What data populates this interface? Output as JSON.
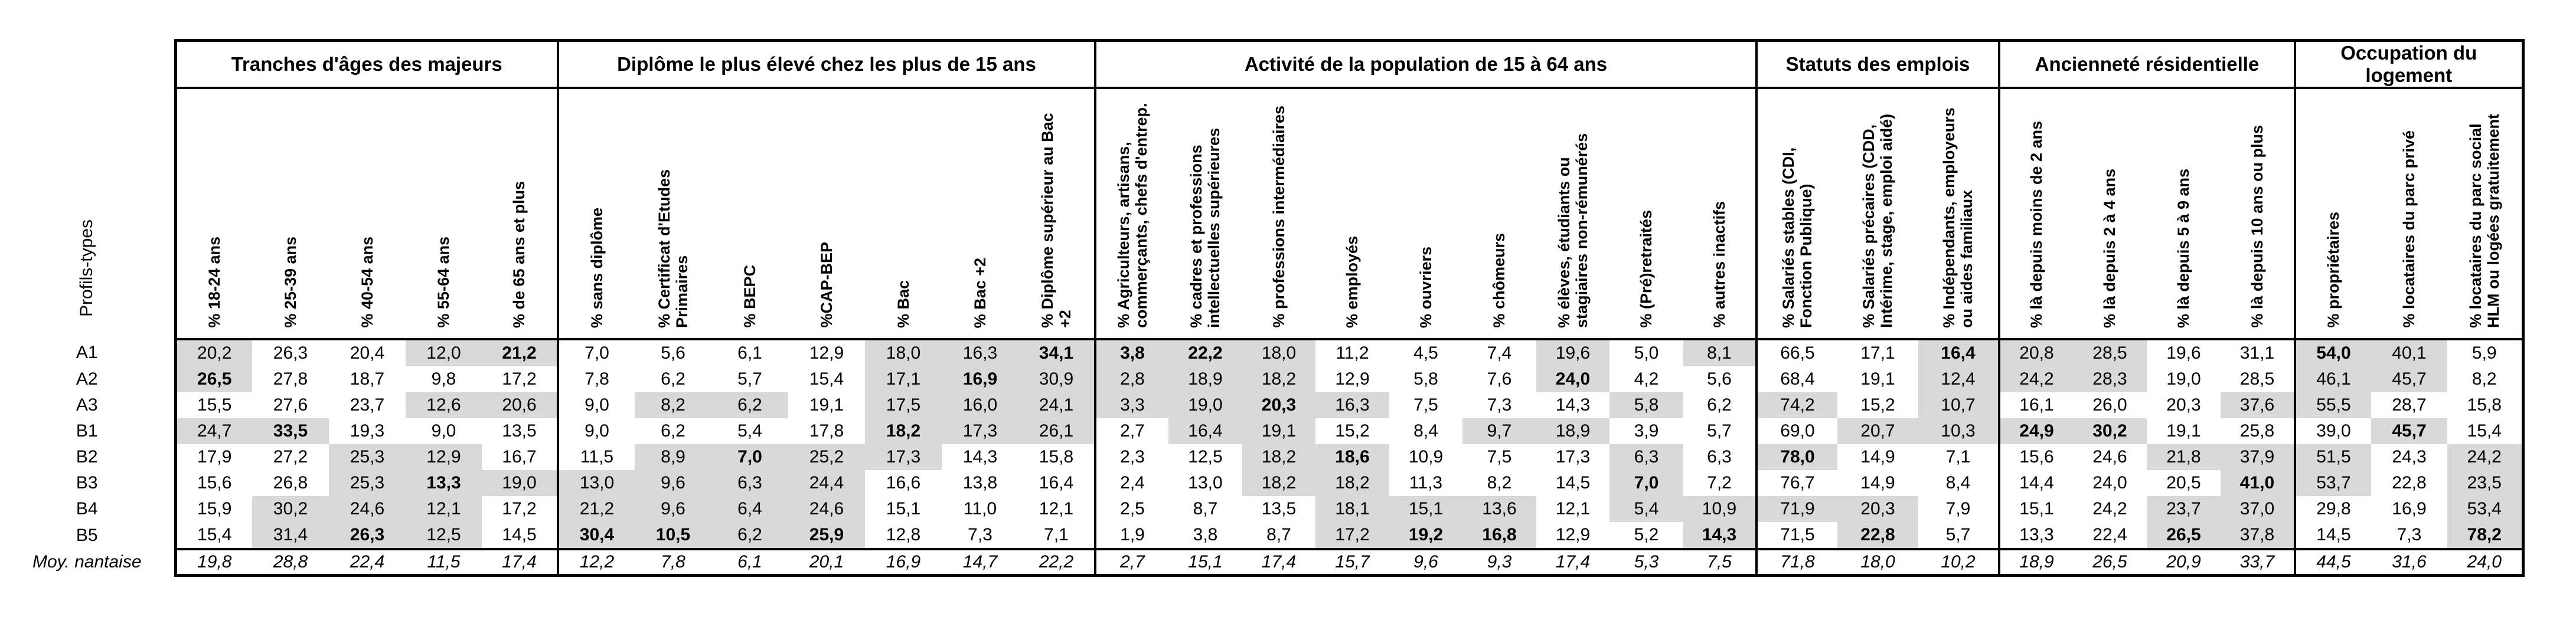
{
  "table": {
    "corner_label": "Profils-types",
    "average_row_label": "Moy. nantaise",
    "highlight_color": "#d9d9d9",
    "groups": [
      {
        "label": "Tranches d'âges des majeurs",
        "columns": [
          "% 18-24 ans",
          "% 25-39 ans",
          "% 40-54 ans",
          "% 55-64 ans",
          "% de 65 ans et plus"
        ]
      },
      {
        "label": "Diplôme le plus élevé chez les plus de 15 ans",
        "columns": [
          "% sans diplôme",
          "% Certificat d'Etudes Primaires",
          "% BEPC",
          "%CAP-BEP",
          "% Bac",
          "% Bac +2",
          "% Diplôme supérieur au Bac +2"
        ]
      },
      {
        "label": "Activité de la population de 15 à 64 ans",
        "columns": [
          "% Agriculteurs, artisans, commerçants, chefs d'entrep.",
          "% cadres et professions intellectuelles supérieures",
          "% professions intermédiaires",
          "% employés",
          "% ouvriers",
          "% chômeurs",
          "% élèves, étudiants ou stagiaires non-rémunérés",
          "% (Pré)retraités",
          "% autres inactifs"
        ]
      },
      {
        "label": "Statuts des emplois",
        "columns": [
          "% Salariés stables (CDI, Fonction Publique)",
          "% Salariés précaires (CDD, Intérime, stage, emploi aidé)",
          "% Indépendants, employeurs ou aides familiaux"
        ]
      },
      {
        "label": "Ancienneté résidentielle",
        "columns": [
          "% là depuis moins de 2 ans",
          "% là depuis 2 à 4 ans",
          "% là depuis 5 à 9 ans",
          "% là depuis 10 ans ou plus"
        ]
      },
      {
        "label": "Occupation du logement",
        "columns": [
          "% propriétaires",
          "% locataires du parc privé",
          "% locataires du parc social HLM ou logées gratuitement"
        ]
      }
    ],
    "flag_legend": "0 = plain, 1 = gray highlight, 2 = gray highlight + bold",
    "rows": [
      {
        "label": "A1",
        "values": [
          "20,2",
          "26,3",
          "20,4",
          "12,0",
          "21,2",
          "7,0",
          "5,6",
          "6,1",
          "12,9",
          "18,0",
          "16,3",
          "34,1",
          "3,8",
          "22,2",
          "18,0",
          "11,2",
          "4,5",
          "7,4",
          "19,6",
          "5,0",
          "8,1",
          "66,5",
          "17,1",
          "16,4",
          "20,8",
          "28,5",
          "19,6",
          "31,1",
          "54,0",
          "40,1",
          "5,9"
        ],
        "flags": [
          1,
          0,
          0,
          1,
          2,
          0,
          0,
          0,
          0,
          1,
          1,
          2,
          2,
          2,
          1,
          0,
          0,
          0,
          1,
          0,
          1,
          0,
          0,
          2,
          1,
          1,
          0,
          0,
          2,
          1,
          0
        ]
      },
      {
        "label": "A2",
        "values": [
          "26,5",
          "27,8",
          "18,7",
          "9,8",
          "17,2",
          "7,8",
          "6,2",
          "5,7",
          "15,4",
          "17,1",
          "16,9",
          "30,9",
          "2,8",
          "18,9",
          "18,2",
          "12,9",
          "5,8",
          "7,6",
          "24,0",
          "4,2",
          "5,6",
          "68,4",
          "19,1",
          "12,4",
          "24,2",
          "28,3",
          "19,0",
          "28,5",
          "46,1",
          "45,7",
          "8,2"
        ],
        "flags": [
          2,
          0,
          0,
          0,
          0,
          0,
          0,
          0,
          0,
          1,
          2,
          1,
          1,
          1,
          1,
          0,
          0,
          0,
          2,
          0,
          0,
          0,
          0,
          1,
          1,
          1,
          0,
          0,
          1,
          1,
          0
        ]
      },
      {
        "label": "A3",
        "values": [
          "15,5",
          "27,6",
          "23,7",
          "12,6",
          "20,6",
          "9,0",
          "8,2",
          "6,2",
          "19,1",
          "17,5",
          "16,0",
          "24,1",
          "3,3",
          "19,0",
          "20,3",
          "16,3",
          "7,5",
          "7,3",
          "14,3",
          "5,8",
          "6,2",
          "74,2",
          "15,2",
          "10,7",
          "16,1",
          "26,0",
          "20,3",
          "37,6",
          "55,5",
          "28,7",
          "15,8"
        ],
        "flags": [
          0,
          0,
          0,
          1,
          1,
          0,
          1,
          1,
          0,
          1,
          1,
          1,
          1,
          1,
          2,
          1,
          0,
          0,
          0,
          1,
          0,
          1,
          0,
          1,
          0,
          0,
          0,
          1,
          1,
          0,
          0
        ]
      },
      {
        "label": "B1",
        "values": [
          "24,7",
          "33,5",
          "19,3",
          "9,0",
          "13,5",
          "9,0",
          "6,2",
          "5,4",
          "17,8",
          "18,2",
          "17,3",
          "26,1",
          "2,7",
          "16,4",
          "19,1",
          "15,2",
          "8,4",
          "9,7",
          "18,9",
          "3,9",
          "5,7",
          "69,0",
          "20,7",
          "10,3",
          "24,9",
          "30,2",
          "19,1",
          "25,8",
          "39,0",
          "45,7",
          "15,4"
        ],
        "flags": [
          1,
          2,
          0,
          0,
          0,
          0,
          0,
          0,
          0,
          2,
          1,
          1,
          0,
          1,
          1,
          0,
          0,
          1,
          1,
          0,
          0,
          0,
          1,
          1,
          2,
          2,
          0,
          0,
          0,
          2,
          0
        ]
      },
      {
        "label": "B2",
        "values": [
          "17,9",
          "27,2",
          "25,3",
          "12,9",
          "16,7",
          "11,5",
          "8,9",
          "7,0",
          "25,2",
          "17,3",
          "14,3",
          "15,8",
          "2,3",
          "12,5",
          "18,2",
          "18,6",
          "10,9",
          "7,5",
          "17,3",
          "6,3",
          "6,3",
          "78,0",
          "14,9",
          "7,1",
          "15,6",
          "24,6",
          "21,8",
          "37,9",
          "51,5",
          "24,3",
          "24,2"
        ],
        "flags": [
          0,
          0,
          1,
          1,
          0,
          0,
          1,
          2,
          1,
          1,
          0,
          0,
          0,
          0,
          1,
          2,
          0,
          0,
          0,
          1,
          0,
          2,
          0,
          0,
          0,
          0,
          1,
          1,
          1,
          0,
          1
        ]
      },
      {
        "label": "B3",
        "values": [
          "15,6",
          "26,8",
          "25,3",
          "13,3",
          "19,0",
          "13,0",
          "9,6",
          "6,3",
          "24,4",
          "16,6",
          "13,8",
          "16,4",
          "2,4",
          "13,0",
          "18,2",
          "18,2",
          "11,3",
          "8,2",
          "14,5",
          "7,0",
          "7,2",
          "76,7",
          "14,9",
          "8,4",
          "14,4",
          "24,0",
          "20,5",
          "41,0",
          "53,7",
          "22,8",
          "23,5"
        ],
        "flags": [
          0,
          0,
          1,
          2,
          1,
          1,
          1,
          1,
          1,
          0,
          0,
          0,
          0,
          0,
          1,
          1,
          0,
          0,
          0,
          2,
          0,
          0,
          0,
          0,
          0,
          0,
          0,
          2,
          1,
          0,
          1
        ]
      },
      {
        "label": "B4",
        "values": [
          "15,9",
          "30,2",
          "24,6",
          "12,1",
          "17,2",
          "21,2",
          "9,6",
          "6,4",
          "24,6",
          "15,1",
          "11,0",
          "12,1",
          "2,5",
          "8,7",
          "13,5",
          "18,1",
          "15,1",
          "13,6",
          "12,1",
          "5,4",
          "10,9",
          "71,9",
          "20,3",
          "7,9",
          "15,1",
          "24,2",
          "23,7",
          "37,0",
          "29,8",
          "16,9",
          "53,4"
        ],
        "flags": [
          0,
          1,
          1,
          1,
          0,
          1,
          1,
          1,
          1,
          0,
          0,
          0,
          0,
          0,
          0,
          1,
          1,
          1,
          0,
          1,
          1,
          1,
          1,
          0,
          0,
          0,
          1,
          1,
          0,
          0,
          1
        ]
      },
      {
        "label": "B5",
        "values": [
          "15,4",
          "31,4",
          "26,3",
          "12,5",
          "14,5",
          "30,4",
          "10,5",
          "6,2",
          "25,9",
          "12,8",
          "7,3",
          "7,1",
          "1,9",
          "3,8",
          "8,7",
          "17,2",
          "19,2",
          "16,8",
          "12,9",
          "5,2",
          "14,3",
          "71,5",
          "22,8",
          "5,7",
          "13,3",
          "22,4",
          "26,5",
          "37,8",
          "14,5",
          "7,3",
          "78,2"
        ],
        "flags": [
          0,
          1,
          2,
          1,
          0,
          2,
          2,
          1,
          2,
          0,
          0,
          0,
          0,
          0,
          0,
          1,
          2,
          2,
          0,
          0,
          2,
          0,
          2,
          0,
          0,
          0,
          2,
          1,
          0,
          0,
          2
        ]
      },
      {
        "label": "Moy. nantaise",
        "italic": true,
        "values": [
          "19,8",
          "28,8",
          "22,4",
          "11,5",
          "17,4",
          "12,2",
          "7,8",
          "6,1",
          "20,1",
          "16,9",
          "14,7",
          "22,2",
          "2,7",
          "15,1",
          "17,4",
          "15,7",
          "9,6",
          "9,3",
          "17,4",
          "5,3",
          "7,5",
          "71,8",
          "18,0",
          "10,2",
          "18,9",
          "26,5",
          "20,9",
          "33,7",
          "44,5",
          "31,6",
          "24,0"
        ],
        "flags": [
          0,
          0,
          0,
          0,
          0,
          0,
          0,
          0,
          0,
          0,
          0,
          0,
          0,
          0,
          0,
          0,
          0,
          0,
          0,
          0,
          0,
          0,
          0,
          0,
          0,
          0,
          0,
          0,
          0,
          0,
          0
        ]
      }
    ]
  }
}
